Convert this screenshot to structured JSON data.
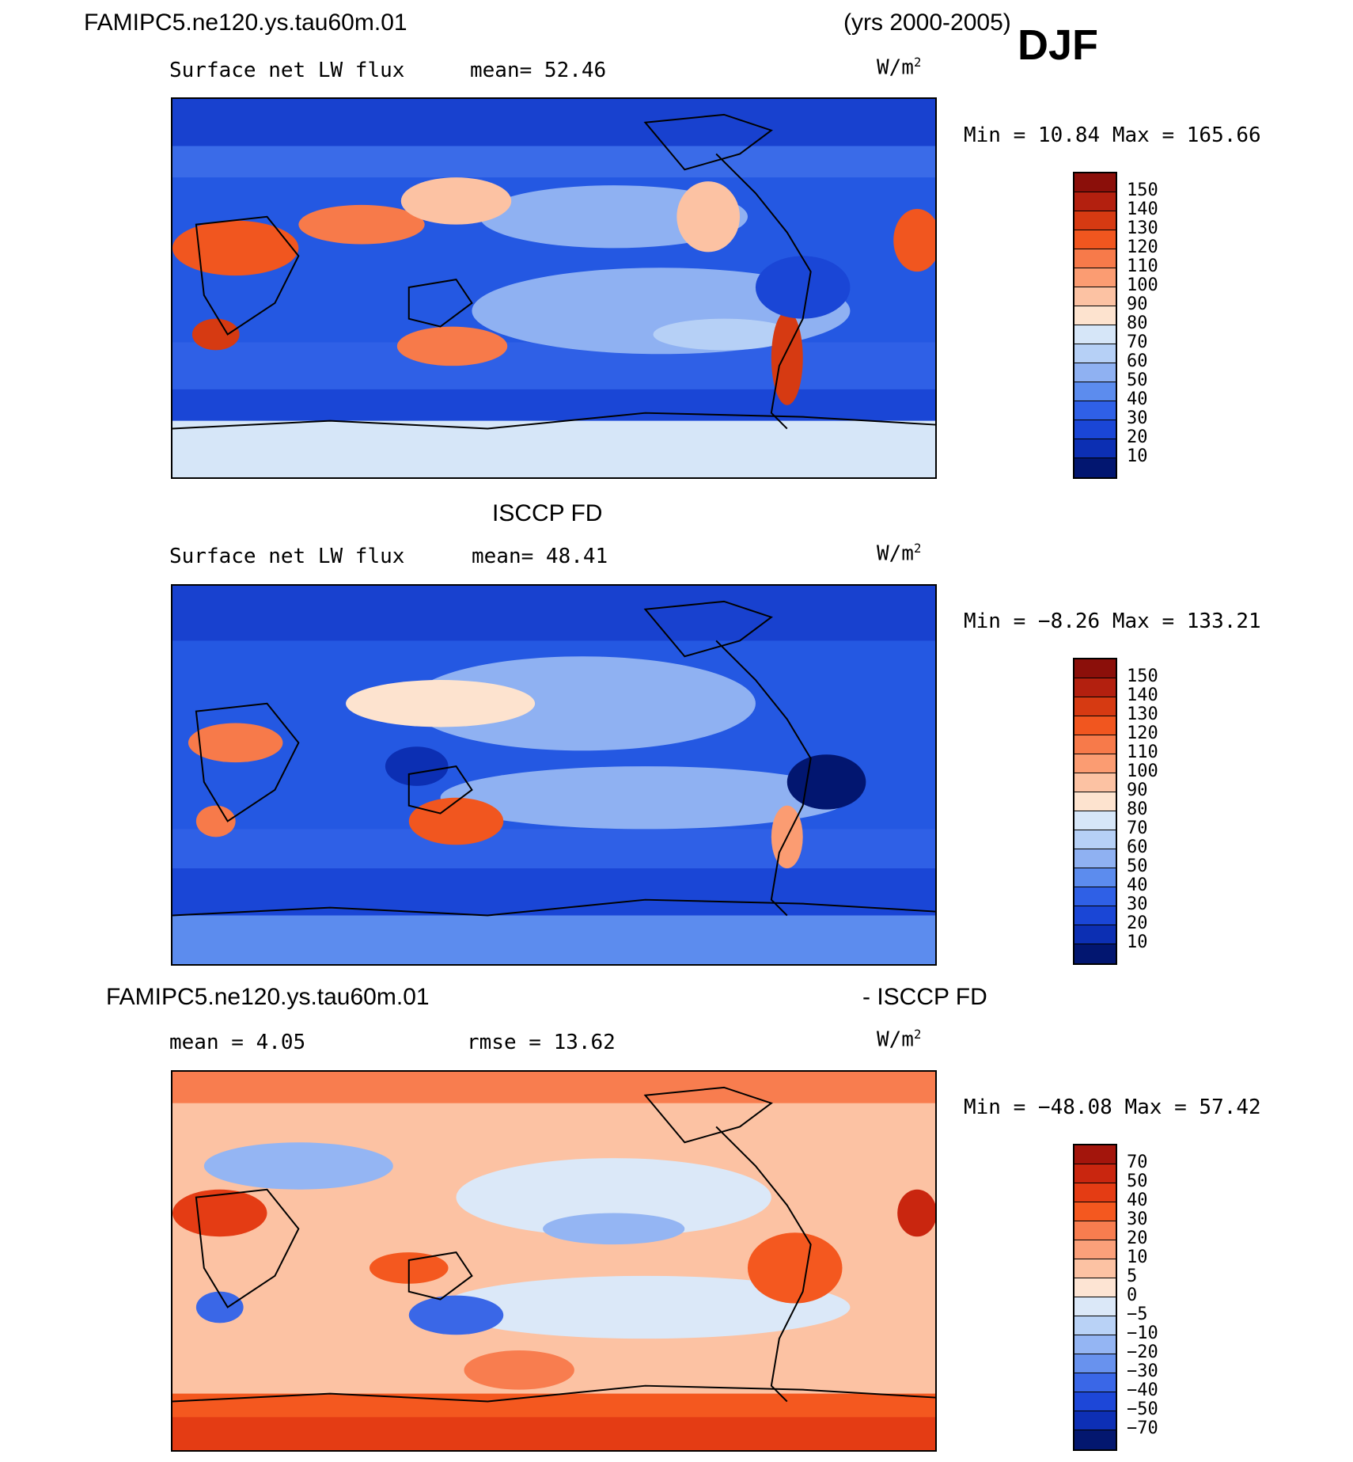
{
  "header": {
    "case_name": "FAMIPC5.ne120.ys.tau60m.01",
    "years": "(yrs 2000-2005)",
    "season": "DJF"
  },
  "panels": [
    {
      "id": "model",
      "title": "",
      "variable": "Surface net LW flux",
      "stat1": "mean=  52.46",
      "stat2": "",
      "units_base": "W/m",
      "units_exp": "2",
      "minmax": "Min =   10.84 Max = 165.66",
      "colorbar": {
        "labels": [
          "150",
          "140",
          "130",
          "120",
          "110",
          "100",
          "90",
          "80",
          "70",
          "60",
          "50",
          "40",
          "30",
          "20",
          "10"
        ],
        "colors": [
          "#8b0f0a",
          "#b3200f",
          "#d63a12",
          "#f1561f",
          "#f77a4a",
          "#fb9c72",
          "#fcc2a3",
          "#fde3cf",
          "#d6e6f8",
          "#b6d0f6",
          "#8fb1f2",
          "#5c8cee",
          "#2f60e6",
          "#1a46d6",
          "#0c2fb3",
          "#021670"
        ]
      }
    },
    {
      "id": "obs",
      "title": "ISCCP FD",
      "variable": "Surface net LW flux",
      "stat1": "mean=  48.41",
      "stat2": "",
      "units_base": "W/m",
      "units_exp": "2",
      "minmax": "Min =  −8.26 Max = 133.21",
      "colorbar": {
        "labels": [
          "150",
          "140",
          "130",
          "120",
          "110",
          "100",
          "90",
          "80",
          "70",
          "60",
          "50",
          "40",
          "30",
          "20",
          "10"
        ],
        "colors": [
          "#8b0f0a",
          "#b3200f",
          "#d63a12",
          "#f1561f",
          "#f77a4a",
          "#fb9c72",
          "#fcc2a3",
          "#fde3cf",
          "#d6e6f8",
          "#b6d0f6",
          "#8fb1f2",
          "#5c8cee",
          "#2f60e6",
          "#1a46d6",
          "#0c2fb3",
          "#021670"
        ]
      }
    },
    {
      "id": "diff",
      "title_left": "FAMIPC5.ne120.ys.tau60m.01",
      "title_right": "- ISCCP FD",
      "stat1": "mean =    4.05",
      "stat2": "rmse =   13.62",
      "units_base": "W/m",
      "units_exp": "2",
      "minmax": "Min = −48.08 Max =   57.42",
      "colorbar": {
        "labels": [
          "70",
          "50",
          "40",
          "30",
          "20",
          "10",
          "5",
          "0",
          "−5",
          "−10",
          "−20",
          "−30",
          "−40",
          "−50",
          "−70"
        ],
        "colors": [
          "#a3150c",
          "#c9260f",
          "#e43c14",
          "#f4581f",
          "#f87d4f",
          "#fba07a",
          "#fcc2a3",
          "#fde4d3",
          "#dbe8f8",
          "#b9d2f6",
          "#94b5f3",
          "#6892ee",
          "#3a67e7",
          "#1d47d8",
          "#0d2fb5",
          "#03176f"
        ]
      }
    }
  ]
}
